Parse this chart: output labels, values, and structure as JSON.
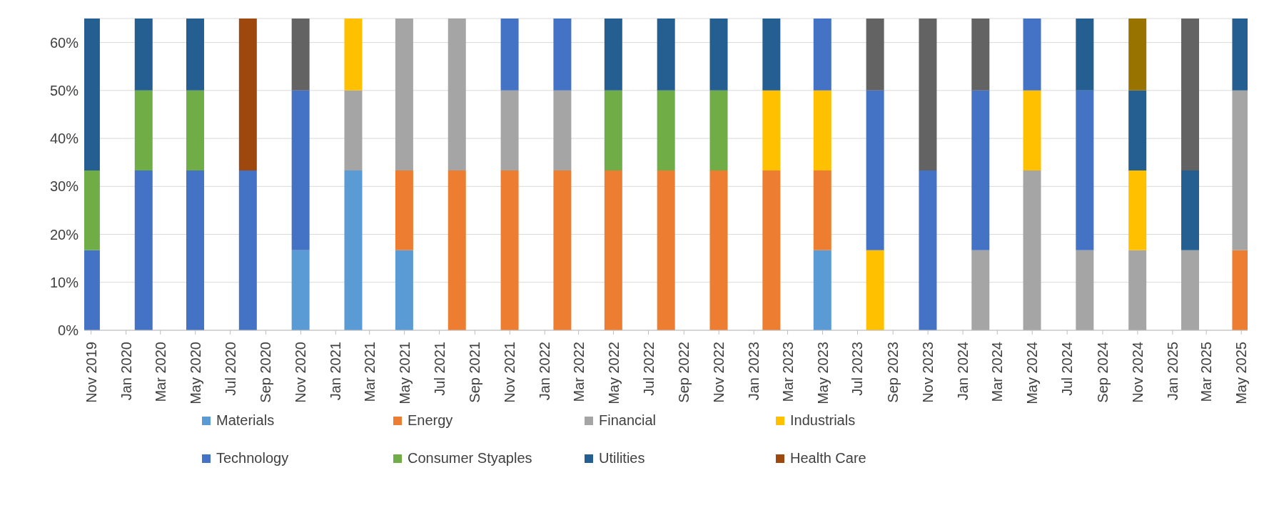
{
  "chart_data": {
    "type": "bar",
    "stacked": true,
    "x": [
      "2019-11",
      "2020-02",
      "2020-05",
      "2020-08",
      "2020-11",
      "2021-02",
      "2021-05",
      "2021-08",
      "2021-11",
      "2022-02",
      "2022-05",
      "2022-08",
      "2022-11",
      "2023-02",
      "2023-05",
      "2023-08",
      "2023-11",
      "2024-02",
      "2024-05",
      "2024-08",
      "2024-11",
      "2025-02",
      "2025-05"
    ],
    "series": [
      {
        "name": "Materials",
        "color": "#5b9bd5",
        "values": [
          null,
          null,
          null,
          null,
          16.7,
          33.3,
          16.7,
          null,
          null,
          null,
          null,
          null,
          null,
          null,
          16.7,
          null,
          null,
          null,
          null,
          null,
          null,
          null,
          null
        ]
      },
      {
        "name": "Energy",
        "color": "#ed7d31",
        "values": [
          null,
          null,
          null,
          null,
          null,
          null,
          16.6,
          33.3,
          33.3,
          33.3,
          33.3,
          33.3,
          33.3,
          33.3,
          16.6,
          null,
          null,
          null,
          null,
          null,
          null,
          null,
          16.7
        ]
      },
      {
        "name": "Financial",
        "color": "#a5a5a5",
        "values": [
          null,
          null,
          null,
          null,
          null,
          16.7,
          31.7,
          31.7,
          16.7,
          16.7,
          null,
          null,
          null,
          null,
          null,
          null,
          null,
          16.7,
          33.3,
          16.7,
          16.7,
          16.7,
          33.3
        ]
      },
      {
        "name": "Industrials",
        "color": "#ffc000",
        "values": [
          null,
          null,
          null,
          null,
          null,
          15,
          null,
          null,
          null,
          null,
          null,
          null,
          null,
          16.7,
          16.7,
          16.7,
          null,
          null,
          16.7,
          null,
          16.6,
          null,
          null
        ]
      },
      {
        "name": "Technology",
        "color": "#4472c4",
        "values": [
          16.7,
          33.3,
          33.3,
          33.3,
          33.3,
          null,
          null,
          null,
          15,
          15,
          null,
          null,
          null,
          null,
          15,
          33.3,
          33.3,
          33.3,
          15,
          33.3,
          null,
          null,
          null
        ]
      },
      {
        "name": "Consumer Styaples",
        "color": "#70ad47",
        "values": [
          16.6,
          16.7,
          16.7,
          null,
          null,
          null,
          null,
          null,
          null,
          null,
          16.7,
          16.7,
          16.7,
          null,
          null,
          null,
          null,
          null,
          null,
          null,
          null,
          null,
          null
        ]
      },
      {
        "name": "Utilities",
        "color": "#255e91",
        "values": [
          31.7,
          15,
          15,
          null,
          null,
          null,
          null,
          null,
          null,
          null,
          15,
          15,
          15,
          15,
          null,
          null,
          null,
          null,
          null,
          15,
          16.7,
          16.6,
          15
        ]
      },
      {
        "name": "Health Care",
        "color": "#9e480e",
        "values": [
          null,
          null,
          null,
          31.7,
          null,
          null,
          null,
          null,
          null,
          null,
          null,
          null,
          null,
          null,
          null,
          null,
          null,
          null,
          null,
          null,
          null,
          null,
          null
        ]
      },
      {
        "color": "#636363",
        "values": [
          null,
          null,
          null,
          null,
          15,
          null,
          null,
          null,
          null,
          null,
          null,
          null,
          null,
          null,
          null,
          15,
          31.7,
          15,
          null,
          null,
          null,
          31.7,
          null
        ]
      },
      {
        "color": "#997300",
        "values": [
          null,
          null,
          null,
          null,
          null,
          null,
          null,
          null,
          null,
          null,
          null,
          null,
          null,
          null,
          null,
          null,
          null,
          null,
          null,
          null,
          15,
          null,
          null
        ]
      }
    ],
    "xlim": [
      "2019-10-20",
      "2025-05-12"
    ],
    "xticks": [
      {
        "value": "2019-11",
        "label": "Nov 2019"
      },
      {
        "value": "2020-01",
        "label": "Jan 2020"
      },
      {
        "value": "2020-03",
        "label": "Mar 2020"
      },
      {
        "value": "2020-05",
        "label": "May 2020"
      },
      {
        "value": "2020-07",
        "label": "Jul 2020"
      },
      {
        "value": "2020-09",
        "label": "Sep 2020"
      },
      {
        "value": "2020-11",
        "label": "Nov 2020"
      },
      {
        "value": "2021-01",
        "label": "Jan 2021"
      },
      {
        "value": "2021-03",
        "label": "Mar 2021"
      },
      {
        "value": "2021-05",
        "label": "May 2021"
      },
      {
        "value": "2021-07",
        "label": "Jul 2021"
      },
      {
        "value": "2021-09",
        "label": "Sep 2021"
      },
      {
        "value": "2021-11",
        "label": "Nov 2021"
      },
      {
        "value": "2022-01",
        "label": "Jan 2022"
      },
      {
        "value": "2022-03",
        "label": "Mar 2022"
      },
      {
        "value": "2022-05",
        "label": "May 2022"
      },
      {
        "value": "2022-07",
        "label": "Jul 2022"
      },
      {
        "value": "2022-09",
        "label": "Sep 2022"
      },
      {
        "value": "2022-11",
        "label": "Nov 2022"
      },
      {
        "value": "2023-01",
        "label": "Jan 2023"
      },
      {
        "value": "2023-03",
        "label": "Mar 2023"
      },
      {
        "value": "2023-05",
        "label": "May 2023"
      },
      {
        "value": "2023-07",
        "label": "Jul 2023"
      },
      {
        "value": "2023-09",
        "label": "Sep 2023"
      },
      {
        "value": "2023-11",
        "label": "Nov 2023"
      },
      {
        "value": "2024-01",
        "label": "Jan 2024"
      },
      {
        "value": "2024-03",
        "label": "Mar 2024"
      },
      {
        "value": "2024-05",
        "label": "May 2024"
      },
      {
        "value": "2024-07",
        "label": "Jul 2024"
      },
      {
        "value": "2024-09",
        "label": "Sep 2024"
      },
      {
        "value": "2024-11",
        "label": "Nov 2024"
      },
      {
        "value": "2025-01",
        "label": "Jan 2025"
      },
      {
        "value": "2025-03",
        "label": "Mar 2025"
      },
      {
        "value": "2025-05",
        "label": "May 2025"
      }
    ],
    "ylim": [
      0,
      65
    ],
    "yticks": [
      {
        "value": 0,
        "label": "0%"
      },
      {
        "value": 10,
        "label": "10%"
      },
      {
        "value": 20,
        "label": "20%"
      },
      {
        "value": 30,
        "label": "30%"
      },
      {
        "value": 40,
        "label": "40%"
      },
      {
        "value": 50,
        "label": "50%"
      },
      {
        "value": 60,
        "label": "60%"
      }
    ],
    "grid": "y",
    "legend": "bottom"
  }
}
